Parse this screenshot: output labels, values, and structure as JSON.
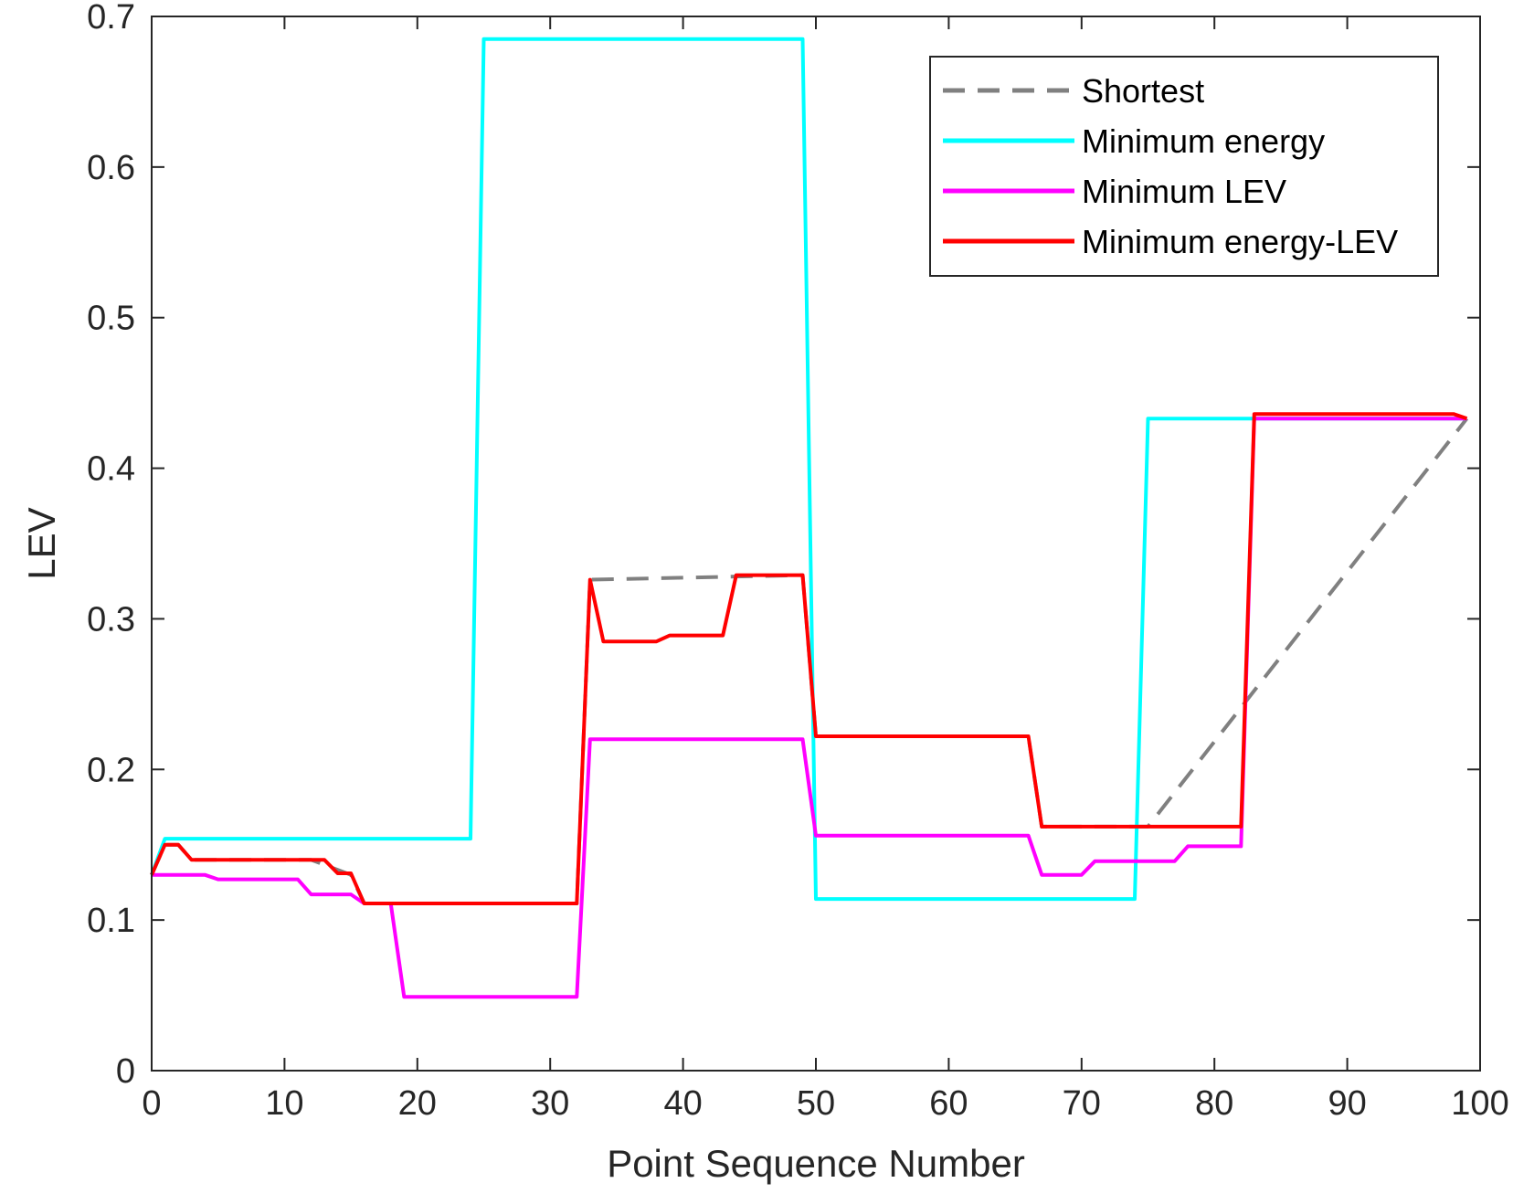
{
  "chart_data": {
    "type": "line",
    "title": "",
    "xlabel": "Point Sequence Number",
    "ylabel": "LEV",
    "xlim": [
      0,
      100
    ],
    "ylim": [
      0,
      0.7
    ],
    "xticks": [
      0,
      10,
      20,
      30,
      40,
      50,
      60,
      70,
      80,
      90,
      100
    ],
    "yticks": [
      0,
      0.1,
      0.2,
      0.3,
      0.4,
      0.5,
      0.6,
      0.7
    ],
    "xtick_labels": [
      "0",
      "10",
      "20",
      "30",
      "40",
      "50",
      "60",
      "70",
      "80",
      "90",
      "100"
    ],
    "ytick_labels": [
      "0",
      "0.1",
      "0.2",
      "0.3",
      "0.4",
      "0.5",
      "0.6",
      "0.7"
    ],
    "grid": false,
    "legend_position": "top-right",
    "series": [
      {
        "name": "Shortest",
        "color": "#808080",
        "style": "dashed",
        "x": [
          0,
          1,
          2,
          3,
          4,
          5,
          6,
          11,
          12,
          15,
          16,
          32,
          33,
          49,
          50,
          66,
          67,
          74,
          75,
          99
        ],
        "y": [
          0.13,
          0.15,
          0.15,
          0.14,
          0.14,
          0.14,
          0.14,
          0.14,
          0.14,
          0.13,
          0.111,
          0.111,
          0.326,
          0.329,
          0.222,
          0.222,
          0.162,
          0.162,
          0.162,
          0.433
        ]
      },
      {
        "name": "Minimum energy",
        "color": "#00FFFF",
        "style": "solid",
        "x": [
          0,
          1,
          24,
          25,
          49,
          50,
          74,
          75,
          99
        ],
        "y": [
          0.13,
          0.154,
          0.154,
          0.685,
          0.685,
          0.114,
          0.114,
          0.433,
          0.433
        ]
      },
      {
        "name": "Minimum LEV",
        "color": "#FF00FF",
        "style": "solid",
        "x": [
          0,
          4,
          5,
          11,
          12,
          15,
          16,
          18,
          19,
          32,
          33,
          49,
          50,
          66,
          67,
          70,
          71,
          77,
          78,
          82,
          83,
          99
        ],
        "y": [
          0.13,
          0.13,
          0.127,
          0.127,
          0.117,
          0.117,
          0.111,
          0.111,
          0.049,
          0.049,
          0.22,
          0.22,
          0.156,
          0.156,
          0.13,
          0.13,
          0.139,
          0.139,
          0.149,
          0.149,
          0.433,
          0.433
        ]
      },
      {
        "name": "Minimum energy-LEV",
        "color": "#FF0000",
        "style": "solid",
        "x": [
          0,
          1,
          2,
          3,
          13,
          14,
          15,
          16,
          32,
          33,
          34,
          38,
          39,
          43,
          44,
          49,
          50,
          66,
          67,
          82,
          83,
          98,
          99
        ],
        "y": [
          0.13,
          0.15,
          0.15,
          0.14,
          0.14,
          0.131,
          0.131,
          0.111,
          0.111,
          0.326,
          0.285,
          0.285,
          0.289,
          0.289,
          0.329,
          0.329,
          0.222,
          0.222,
          0.162,
          0.162,
          0.436,
          0.436,
          0.433
        ]
      }
    ]
  }
}
